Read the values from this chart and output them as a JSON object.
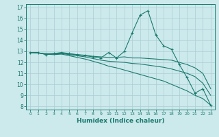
{
  "xlabel": "Humidex (Indice chaleur)",
  "bg_color": "#cce9ec",
  "grid_color": "#aacdd4",
  "line_color": "#1a7a6e",
  "xlim": [
    -0.5,
    23.5
  ],
  "ylim": [
    7.7,
    17.3
  ],
  "yticks": [
    8,
    9,
    10,
    11,
    12,
    13,
    14,
    15,
    16,
    17
  ],
  "xticks": [
    0,
    1,
    2,
    3,
    4,
    5,
    6,
    7,
    8,
    9,
    10,
    11,
    12,
    13,
    14,
    15,
    16,
    17,
    18,
    19,
    20,
    21,
    22,
    23
  ],
  "series": [
    {
      "x": [
        0,
        1,
        2,
        3,
        4,
        5,
        6,
        7,
        8,
        9,
        10,
        11,
        12,
        13,
        14,
        15,
        16,
        17,
        18,
        19,
        20,
        21,
        22,
        23
      ],
      "y": [
        12.9,
        12.9,
        12.7,
        12.8,
        12.9,
        12.8,
        12.7,
        12.6,
        12.5,
        12.4,
        12.9,
        12.4,
        13.0,
        14.7,
        16.3,
        16.7,
        14.5,
        13.5,
        13.2,
        11.8,
        10.6,
        9.2,
        9.6,
        8.1
      ],
      "marker": "+"
    },
    {
      "x": [
        0,
        1,
        2,
        3,
        4,
        5,
        6,
        7,
        8,
        9,
        10,
        11,
        12,
        13,
        14,
        15,
        16,
        17,
        18,
        19,
        20,
        21,
        22,
        23
      ],
      "y": [
        12.9,
        12.85,
        12.8,
        12.8,
        12.85,
        12.75,
        12.7,
        12.65,
        12.55,
        12.5,
        12.45,
        12.45,
        12.5,
        12.4,
        12.4,
        12.35,
        12.3,
        12.25,
        12.2,
        12.0,
        11.8,
        11.5,
        11.0,
        9.6
      ],
      "marker": null
    },
    {
      "x": [
        0,
        1,
        2,
        3,
        4,
        5,
        6,
        7,
        8,
        9,
        10,
        11,
        12,
        13,
        14,
        15,
        16,
        17,
        18,
        19,
        20,
        21,
        22,
        23
      ],
      "y": [
        12.9,
        12.85,
        12.75,
        12.75,
        12.8,
        12.7,
        12.6,
        12.5,
        12.35,
        12.2,
        12.1,
        12.05,
        12.0,
        11.9,
        11.85,
        11.75,
        11.65,
        11.55,
        11.4,
        11.2,
        11.0,
        10.7,
        10.1,
        9.0
      ],
      "marker": null
    },
    {
      "x": [
        0,
        1,
        2,
        3,
        4,
        5,
        6,
        7,
        8,
        9,
        10,
        11,
        12,
        13,
        14,
        15,
        16,
        17,
        18,
        19,
        20,
        21,
        22,
        23
      ],
      "y": [
        12.9,
        12.85,
        12.75,
        12.7,
        12.75,
        12.6,
        12.45,
        12.3,
        12.1,
        11.9,
        11.65,
        11.5,
        11.3,
        11.1,
        10.9,
        10.7,
        10.5,
        10.3,
        10.0,
        9.7,
        9.4,
        9.0,
        8.7,
        8.1
      ],
      "marker": null
    }
  ]
}
